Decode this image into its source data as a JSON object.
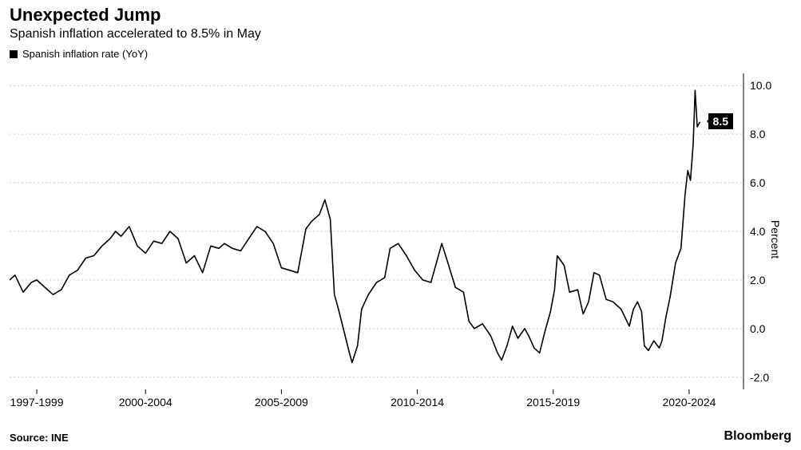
{
  "header": {
    "title": "Unexpected Jump",
    "subtitle": "Spanish inflation accelerated to 8.5% in May"
  },
  "legend": {
    "series_label": "Spanish inflation rate (YoY)"
  },
  "chart": {
    "type": "line",
    "line_color": "#000000",
    "line_width": 1.6,
    "background_color": "#ffffff",
    "grid_color": "#cccccc",
    "grid_dash": "2,3",
    "ylabel": "Percent",
    "ylim": [
      -2.5,
      10.5
    ],
    "yticks": [
      -2.0,
      0.0,
      2.0,
      4.0,
      6.0,
      8.0,
      10.0
    ],
    "ytick_labels": [
      "-2.0",
      "0.0",
      "2.0",
      "4.0",
      "6.0",
      "8.0",
      "10.0"
    ],
    "xlim": [
      1997,
      2024
    ],
    "xticks": [
      1998,
      2002,
      2007,
      2012,
      2017,
      2022
    ],
    "xtick_labels": [
      "1997-1999",
      "2000-2004",
      "2005-2009",
      "2010-2014",
      "2015-2019",
      "2020-2024"
    ],
    "callout": {
      "value": 8.5,
      "label": "8.5"
    },
    "series": [
      {
        "x": 1997.0,
        "y": 2.0
      },
      {
        "x": 1997.2,
        "y": 2.2
      },
      {
        "x": 1997.5,
        "y": 1.5
      },
      {
        "x": 1997.8,
        "y": 1.9
      },
      {
        "x": 1998.0,
        "y": 2.0
      },
      {
        "x": 1998.3,
        "y": 1.7
      },
      {
        "x": 1998.6,
        "y": 1.4
      },
      {
        "x": 1998.9,
        "y": 1.6
      },
      {
        "x": 1999.2,
        "y": 2.2
      },
      {
        "x": 1999.5,
        "y": 2.4
      },
      {
        "x": 1999.8,
        "y": 2.9
      },
      {
        "x": 2000.1,
        "y": 3.0
      },
      {
        "x": 2000.4,
        "y": 3.4
      },
      {
        "x": 2000.7,
        "y": 3.7
      },
      {
        "x": 2000.9,
        "y": 4.0
      },
      {
        "x": 2001.1,
        "y": 3.8
      },
      {
        "x": 2001.4,
        "y": 4.2
      },
      {
        "x": 2001.7,
        "y": 3.4
      },
      {
        "x": 2002.0,
        "y": 3.1
      },
      {
        "x": 2002.3,
        "y": 3.6
      },
      {
        "x": 2002.6,
        "y": 3.5
      },
      {
        "x": 2002.9,
        "y": 4.0
      },
      {
        "x": 2003.2,
        "y": 3.7
      },
      {
        "x": 2003.5,
        "y": 2.7
      },
      {
        "x": 2003.8,
        "y": 3.0
      },
      {
        "x": 2004.1,
        "y": 2.3
      },
      {
        "x": 2004.4,
        "y": 3.4
      },
      {
        "x": 2004.7,
        "y": 3.3
      },
      {
        "x": 2004.9,
        "y": 3.5
      },
      {
        "x": 2005.2,
        "y": 3.3
      },
      {
        "x": 2005.5,
        "y": 3.2
      },
      {
        "x": 2005.8,
        "y": 3.7
      },
      {
        "x": 2006.1,
        "y": 4.2
      },
      {
        "x": 2006.4,
        "y": 4.0
      },
      {
        "x": 2006.7,
        "y": 3.5
      },
      {
        "x": 2007.0,
        "y": 2.5
      },
      {
        "x": 2007.3,
        "y": 2.4
      },
      {
        "x": 2007.6,
        "y": 2.3
      },
      {
        "x": 2007.9,
        "y": 4.1
      },
      {
        "x": 2008.1,
        "y": 4.4
      },
      {
        "x": 2008.4,
        "y": 4.7
      },
      {
        "x": 2008.6,
        "y": 5.3
      },
      {
        "x": 2008.8,
        "y": 4.5
      },
      {
        "x": 2008.95,
        "y": 1.4
      },
      {
        "x": 2009.1,
        "y": 0.8
      },
      {
        "x": 2009.3,
        "y": -0.1
      },
      {
        "x": 2009.5,
        "y": -1.0
      },
      {
        "x": 2009.6,
        "y": -1.4
      },
      {
        "x": 2009.8,
        "y": -0.7
      },
      {
        "x": 2009.95,
        "y": 0.8
      },
      {
        "x": 2010.2,
        "y": 1.4
      },
      {
        "x": 2010.5,
        "y": 1.9
      },
      {
        "x": 2010.8,
        "y": 2.1
      },
      {
        "x": 2011.0,
        "y": 3.3
      },
      {
        "x": 2011.3,
        "y": 3.5
      },
      {
        "x": 2011.6,
        "y": 3.0
      },
      {
        "x": 2011.9,
        "y": 2.4
      },
      {
        "x": 2012.2,
        "y": 2.0
      },
      {
        "x": 2012.5,
        "y": 1.9
      },
      {
        "x": 2012.7,
        "y": 2.7
      },
      {
        "x": 2012.9,
        "y": 3.5
      },
      {
        "x": 2013.1,
        "y": 2.8
      },
      {
        "x": 2013.4,
        "y": 1.7
      },
      {
        "x": 2013.7,
        "y": 1.5
      },
      {
        "x": 2013.9,
        "y": 0.3
      },
      {
        "x": 2014.1,
        "y": 0.0
      },
      {
        "x": 2014.4,
        "y": 0.2
      },
      {
        "x": 2014.7,
        "y": -0.3
      },
      {
        "x": 2014.95,
        "y": -1.0
      },
      {
        "x": 2015.1,
        "y": -1.3
      },
      {
        "x": 2015.3,
        "y": -0.7
      },
      {
        "x": 2015.5,
        "y": 0.1
      },
      {
        "x": 2015.7,
        "y": -0.4
      },
      {
        "x": 2015.95,
        "y": 0.0
      },
      {
        "x": 2016.1,
        "y": -0.3
      },
      {
        "x": 2016.3,
        "y": -0.8
      },
      {
        "x": 2016.5,
        "y": -1.0
      },
      {
        "x": 2016.7,
        "y": -0.1
      },
      {
        "x": 2016.9,
        "y": 0.7
      },
      {
        "x": 2017.05,
        "y": 1.6
      },
      {
        "x": 2017.15,
        "y": 3.0
      },
      {
        "x": 2017.4,
        "y": 2.6
      },
      {
        "x": 2017.6,
        "y": 1.5
      },
      {
        "x": 2017.9,
        "y": 1.6
      },
      {
        "x": 2018.1,
        "y": 0.6
      },
      {
        "x": 2018.3,
        "y": 1.1
      },
      {
        "x": 2018.5,
        "y": 2.3
      },
      {
        "x": 2018.7,
        "y": 2.2
      },
      {
        "x": 2018.95,
        "y": 1.2
      },
      {
        "x": 2019.2,
        "y": 1.1
      },
      {
        "x": 2019.5,
        "y": 0.8
      },
      {
        "x": 2019.8,
        "y": 0.1
      },
      {
        "x": 2019.95,
        "y": 0.8
      },
      {
        "x": 2020.1,
        "y": 1.1
      },
      {
        "x": 2020.25,
        "y": 0.7
      },
      {
        "x": 2020.35,
        "y": -0.7
      },
      {
        "x": 2020.5,
        "y": -0.9
      },
      {
        "x": 2020.7,
        "y": -0.5
      },
      {
        "x": 2020.9,
        "y": -0.8
      },
      {
        "x": 2021.0,
        "y": -0.5
      },
      {
        "x": 2021.15,
        "y": 0.5
      },
      {
        "x": 2021.3,
        "y": 1.3
      },
      {
        "x": 2021.5,
        "y": 2.7
      },
      {
        "x": 2021.7,
        "y": 3.3
      },
      {
        "x": 2021.85,
        "y": 5.5
      },
      {
        "x": 2021.95,
        "y": 6.5
      },
      {
        "x": 2022.05,
        "y": 6.1
      },
      {
        "x": 2022.15,
        "y": 7.6
      },
      {
        "x": 2022.22,
        "y": 9.8
      },
      {
        "x": 2022.3,
        "y": 8.3
      },
      {
        "x": 2022.4,
        "y": 8.5
      }
    ]
  },
  "footer": {
    "source": "Source: INE",
    "brand": "Bloomberg"
  }
}
